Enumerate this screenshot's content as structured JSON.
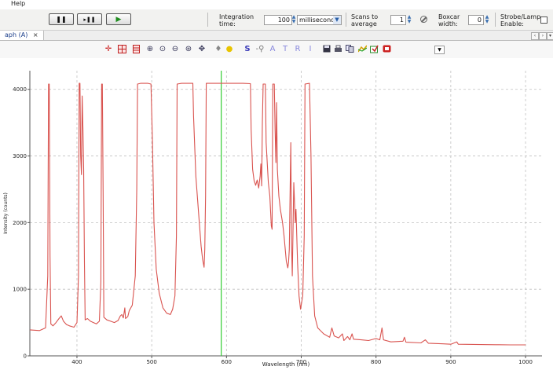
{
  "menu": {
    "help": "Help"
  },
  "acquisition_toolbar": {
    "pause_symbol": "❚❚",
    "step_symbol": "▸❚❚",
    "play_symbol": "▶",
    "integration_label": "Integration time:",
    "integration_value": "100",
    "integration_unit": "milliseconds",
    "scans_label": "Scans to average",
    "scans_value": "1",
    "boxcar_label": "Boxcar width:",
    "boxcar_value": "0",
    "strobe_label": "Strobe/Lamp Enable:"
  },
  "tab": {
    "label": "aph (A)",
    "close": "×",
    "nav_left": "‹",
    "nav_right": "›",
    "menu": "▾"
  },
  "graph_toolbar": {
    "icons": [
      "crosshair-icon",
      "grid-icon",
      "table-icon",
      "zoom-in-icon",
      "zoom-box-icon",
      "zoom-out-icon",
      "zoom-fit-icon",
      "pan-icon",
      "bulb-off-icon",
      "bulb-on-icon",
      "s-icon",
      "reference-icon",
      "a-icon",
      "t-icon",
      "r-icon",
      "i-icon",
      "save-icon",
      "print-icon",
      "copy-icon",
      "overlay-icon",
      "export-icon",
      "clear-icon",
      "dropdown-icon"
    ],
    "s_label": "S",
    "a_label": "A",
    "t_label": "T",
    "r_label": "R",
    "i_label": "I"
  },
  "colors": {
    "spectrum": "#d9534f",
    "cursor": "#33cc33",
    "grid": "#c0c0c0",
    "toolbar_blue": "#5a5ad0"
  },
  "chart_data": {
    "type": "line",
    "xlabel": "Wavelength (nm)",
    "ylabel": "Intensity (counts)",
    "xlim": [
      337,
      1022
    ],
    "ylim": [
      0,
      4280
    ],
    "x_ticks": [
      400,
      500,
      600,
      700,
      800,
      900,
      1000
    ],
    "y_ticks": [
      0,
      1000,
      2000,
      3000,
      4000
    ],
    "grid": true,
    "cursor_x": 593,
    "series": [
      {
        "points": [
          [
            337,
            390
          ],
          [
            350,
            380
          ],
          [
            358,
            420
          ],
          [
            361,
            1200
          ],
          [
            362,
            4080
          ],
          [
            363,
            4080
          ],
          [
            364,
            1500
          ],
          [
            365,
            480
          ],
          [
            368,
            450
          ],
          [
            372,
            500
          ],
          [
            376,
            560
          ],
          [
            379,
            600
          ],
          [
            382,
            520
          ],
          [
            386,
            470
          ],
          [
            390,
            450
          ],
          [
            396,
            430
          ],
          [
            400,
            500
          ],
          [
            402,
            1200
          ],
          [
            403,
            4090
          ],
          [
            404,
            4090
          ],
          [
            405,
            3000
          ],
          [
            406,
            2720
          ],
          [
            407,
            3900
          ],
          [
            408,
            3400
          ],
          [
            409,
            2800
          ],
          [
            410,
            1400
          ],
          [
            411,
            540
          ],
          [
            414,
            560
          ],
          [
            418,
            520
          ],
          [
            422,
            500
          ],
          [
            426,
            480
          ],
          [
            430,
            520
          ],
          [
            432,
            1100
          ],
          [
            433,
            4080
          ],
          [
            434,
            4080
          ],
          [
            435,
            2400
          ],
          [
            436,
            580
          ],
          [
            440,
            540
          ],
          [
            445,
            520
          ],
          [
            450,
            500
          ],
          [
            455,
            530
          ],
          [
            458,
            600
          ],
          [
            460,
            620
          ],
          [
            462,
            570
          ],
          [
            464,
            720
          ],
          [
            465,
            560
          ],
          [
            468,
            590
          ],
          [
            470,
            680
          ],
          [
            474,
            760
          ],
          [
            478,
            1200
          ],
          [
            480,
            2500
          ],
          [
            481,
            4080
          ],
          [
            485,
            4090
          ],
          [
            495,
            4090
          ],
          [
            499,
            4080
          ],
          [
            501,
            3200
          ],
          [
            503,
            2000
          ],
          [
            506,
            1300
          ],
          [
            510,
            940
          ],
          [
            515,
            720
          ],
          [
            520,
            640
          ],
          [
            525,
            620
          ],
          [
            528,
            700
          ],
          [
            531,
            900
          ],
          [
            533,
            1800
          ],
          [
            534,
            4080
          ],
          [
            540,
            4090
          ],
          [
            555,
            4090
          ],
          [
            556,
            3600
          ],
          [
            559,
            2700
          ],
          [
            563,
            2100
          ],
          [
            566,
            1650
          ],
          [
            568,
            1450
          ],
          [
            570,
            1330
          ],
          [
            571,
            1600
          ],
          [
            572,
            2400
          ],
          [
            573,
            4090
          ],
          [
            600,
            4090
          ],
          [
            612,
            4090
          ],
          [
            622,
            4090
          ],
          [
            632,
            4085
          ],
          [
            633,
            3400
          ],
          [
            635,
            2800
          ],
          [
            637,
            2630
          ],
          [
            639,
            2560
          ],
          [
            641,
            2640
          ],
          [
            643,
            2520
          ],
          [
            645,
            2700
          ],
          [
            646,
            2880
          ],
          [
            647,
            2550
          ],
          [
            648,
            3500
          ],
          [
            649,
            4080
          ],
          [
            652,
            4080
          ],
          [
            653,
            3200
          ],
          [
            656,
            2600
          ],
          [
            658,
            2400
          ],
          [
            660,
            1950
          ],
          [
            661,
            1900
          ],
          [
            662,
            4080
          ],
          [
            664,
            4080
          ],
          [
            665,
            3400
          ],
          [
            666,
            2900
          ],
          [
            667,
            3800
          ],
          [
            668,
            2800
          ],
          [
            670,
            2400
          ],
          [
            672,
            2200
          ],
          [
            675,
            2000
          ],
          [
            677,
            1800
          ],
          [
            680,
            1420
          ],
          [
            682,
            1320
          ],
          [
            683,
            1400
          ],
          [
            684,
            1600
          ],
          [
            686,
            3200
          ],
          [
            687,
            1700
          ],
          [
            688,
            1200
          ],
          [
            690,
            2600
          ],
          [
            692,
            2000
          ],
          [
            693,
            2200
          ],
          [
            695,
            1400
          ],
          [
            697,
            900
          ],
          [
            699,
            700
          ],
          [
            702,
            900
          ],
          [
            704,
            1800
          ],
          [
            705,
            4080
          ],
          [
            711,
            4090
          ],
          [
            713,
            3000
          ],
          [
            715,
            1200
          ],
          [
            718,
            600
          ],
          [
            722,
            420
          ],
          [
            730,
            330
          ],
          [
            738,
            280
          ],
          [
            741,
            420
          ],
          [
            744,
            300
          ],
          [
            750,
            270
          ],
          [
            755,
            330
          ],
          [
            757,
            230
          ],
          [
            762,
            290
          ],
          [
            765,
            240
          ],
          [
            768,
            330
          ],
          [
            770,
            250
          ],
          [
            780,
            240
          ],
          [
            790,
            230
          ],
          [
            800,
            260
          ],
          [
            805,
            240
          ],
          [
            808,
            420
          ],
          [
            810,
            240
          ],
          [
            820,
            210
          ],
          [
            836,
            220
          ],
          [
            838,
            280
          ],
          [
            840,
            205
          ],
          [
            860,
            195
          ],
          [
            866,
            240
          ],
          [
            870,
            190
          ],
          [
            890,
            180
          ],
          [
            900,
            175
          ],
          [
            908,
            210
          ],
          [
            910,
            175
          ],
          [
            940,
            170
          ],
          [
            960,
            168
          ],
          [
            980,
            165
          ],
          [
            1000,
            165
          ]
        ]
      }
    ]
  }
}
